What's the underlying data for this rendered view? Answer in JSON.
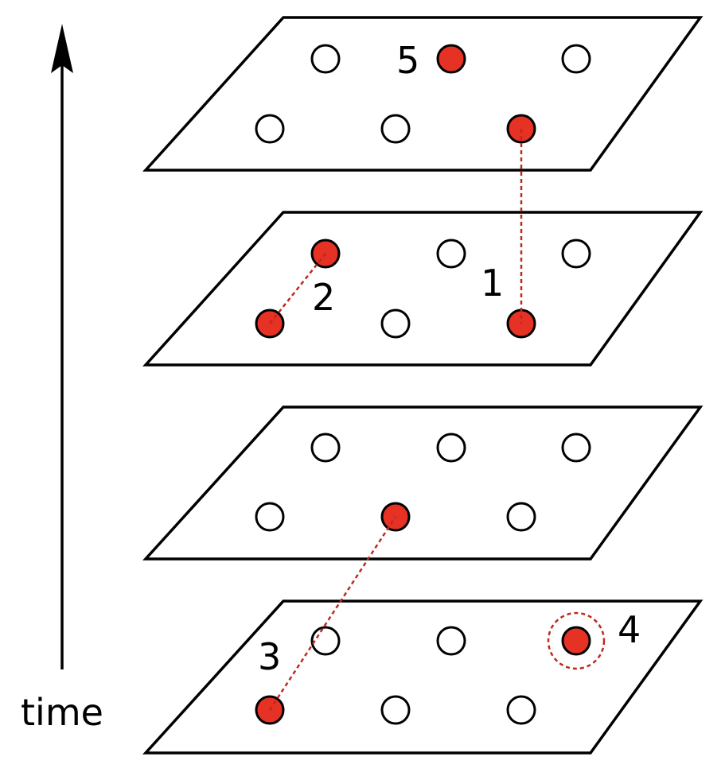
{
  "axis": {
    "label": "time"
  },
  "colors": {
    "active": "#e53224",
    "link": "#c0281e"
  },
  "annotations": {
    "a1": "1",
    "a2": "2",
    "a3": "3",
    "a4": "4",
    "a5": "5"
  }
}
